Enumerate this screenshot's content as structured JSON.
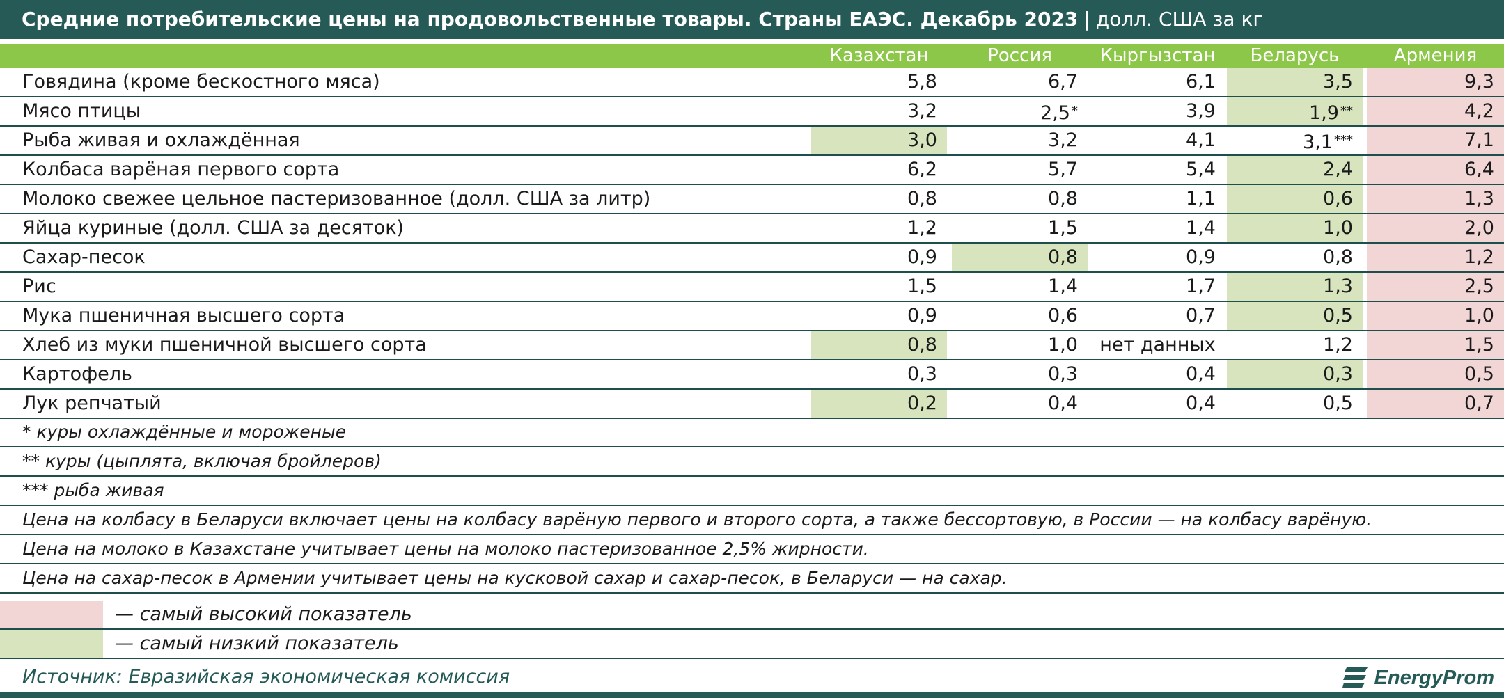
{
  "title": {
    "main": "Средние потребительские цены на продовольственные товары. Страны ЕАЭС. Декабрь 2023",
    "separator": "|",
    "unit": "долл. США за кг"
  },
  "colors": {
    "header_dark": "#255a57",
    "header_green": "#8dc74a",
    "lowest": "#d7e4bd",
    "highest": "#f2d6d6"
  },
  "chart_data": {
    "type": "table",
    "columns": [
      "Казахстан",
      "Россия",
      "Кыргызстан",
      "Беларусь",
      "Армения"
    ],
    "rows": [
      {
        "label": "Говядина (кроме бескостного мяса)",
        "values": [
          "5,8",
          "6,7",
          "6,1",
          "3,5",
          "9,3"
        ],
        "marks": [
          "",
          "",
          "",
          "",
          ""
        ],
        "highlight": [
          "",
          "",
          "",
          "low",
          "high"
        ]
      },
      {
        "label": "Мясо птицы",
        "values": [
          "3,2",
          "2,5",
          "3,9",
          "1,9",
          "4,2"
        ],
        "marks": [
          "",
          "*",
          "",
          "**",
          ""
        ],
        "highlight": [
          "",
          "",
          "",
          "low",
          "high"
        ]
      },
      {
        "label": "Рыба живая и охлаждённая",
        "values": [
          "3,0",
          "3,2",
          "4,1",
          "3,1",
          "7,1"
        ],
        "marks": [
          "",
          "",
          "",
          "***",
          ""
        ],
        "highlight": [
          "low",
          "",
          "",
          "",
          "high"
        ]
      },
      {
        "label": "Колбаса варёная первого сорта",
        "values": [
          "6,2",
          "5,7",
          "5,4",
          "2,4",
          "6,4"
        ],
        "marks": [
          "",
          "",
          "",
          "",
          ""
        ],
        "highlight": [
          "",
          "",
          "",
          "low",
          "high"
        ]
      },
      {
        "label": "Молоко свежее цельное пастеризованное (долл. США за литр)",
        "values": [
          "0,8",
          "0,8",
          "1,1",
          "0,6",
          "1,3"
        ],
        "marks": [
          "",
          "",
          "",
          "",
          ""
        ],
        "highlight": [
          "",
          "",
          "",
          "low",
          "high"
        ]
      },
      {
        "label": "Яйца куриные (долл. США за десяток)",
        "values": [
          "1,2",
          "1,5",
          "1,4",
          "1,0",
          "2,0"
        ],
        "marks": [
          "",
          "",
          "",
          "",
          ""
        ],
        "highlight": [
          "",
          "",
          "",
          "low",
          "high"
        ]
      },
      {
        "label": "Сахар-песок",
        "values": [
          "0,9",
          "0,8",
          "0,9",
          "0,8",
          "1,2"
        ],
        "marks": [
          "",
          "",
          "",
          "",
          ""
        ],
        "highlight": [
          "",
          "low",
          "",
          "",
          "high"
        ]
      },
      {
        "label": "Рис",
        "values": [
          "1,5",
          "1,4",
          "1,7",
          "1,3",
          "2,5"
        ],
        "marks": [
          "",
          "",
          "",
          "",
          ""
        ],
        "highlight": [
          "",
          "",
          "",
          "low",
          "high"
        ]
      },
      {
        "label": "Мука пшеничная высшего сорта",
        "values": [
          "0,9",
          "0,6",
          "0,7",
          "0,5",
          "1,0"
        ],
        "marks": [
          "",
          "",
          "",
          "",
          ""
        ],
        "highlight": [
          "",
          "",
          "",
          "low",
          "high"
        ]
      },
      {
        "label": "Хлеб из муки пшеничной высшего сорта",
        "values": [
          "0,8",
          "1,0",
          "нет данных",
          "1,2",
          "1,5"
        ],
        "marks": [
          "",
          "",
          "",
          "",
          ""
        ],
        "highlight": [
          "low",
          "",
          "",
          "",
          "high"
        ]
      },
      {
        "label": "Картофель",
        "values": [
          "0,3",
          "0,3",
          "0,4",
          "0,3",
          "0,5"
        ],
        "marks": [
          "",
          "",
          "",
          "",
          ""
        ],
        "highlight": [
          "",
          "",
          "",
          "low",
          "high"
        ]
      },
      {
        "label": "Лук репчатый",
        "values": [
          "0,2",
          "0,4",
          "0,4",
          "0,5",
          "0,7"
        ],
        "marks": [
          "",
          "",
          "",
          "",
          ""
        ],
        "highlight": [
          "low",
          "",
          "",
          "",
          "high"
        ]
      }
    ]
  },
  "notes": [
    "* куры охлаждённые и мороженые",
    "** куры (цыплята, включая бройлеров)",
    "*** рыба живая",
    "Цена на колбасу в Беларуси включает цены на колбасу варёную первого и второго сорта, а также бессортовую, в России — на колбасу варёную.",
    "Цена на молоко в Казахстане учитывает цены на молоко пастеризованное 2,5% жирности.",
    "Цена на сахар-песок в Армении учитывает цены на кусковой сахар и сахар-песок, в Беларуси — на сахар."
  ],
  "legend": {
    "highest": "— самый высокий показатель",
    "lowest": "— самый низкий показатель"
  },
  "source": "Источник: Евразийская экономическая комиссия",
  "brand": {
    "name": "EnergyProm",
    "icon": "energyprom-logo-icon"
  }
}
